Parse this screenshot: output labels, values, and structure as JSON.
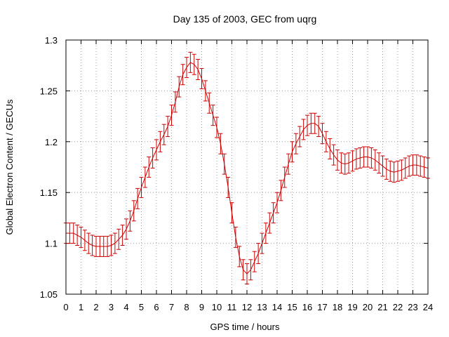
{
  "chart_data": {
    "type": "line",
    "title": "Day 135 of 2003, GEC from uqrg",
    "xlabel": "GPS time / hours",
    "ylabel": "Global Electron Content / GECUs",
    "xlim": [
      0,
      24
    ],
    "ylim": [
      1.05,
      1.3
    ],
    "xticks": [
      0,
      1,
      2,
      3,
      4,
      5,
      6,
      7,
      8,
      9,
      10,
      11,
      12,
      13,
      14,
      15,
      16,
      17,
      18,
      19,
      20,
      21,
      22,
      23,
      24
    ],
    "yticks": [
      1.05,
      1.1,
      1.15,
      1.2,
      1.25,
      1.3
    ],
    "ytick_labels": [
      "1.05",
      "1.1",
      "1.15",
      "1.2",
      "1.25",
      "1.3"
    ],
    "grid": true,
    "colors": {
      "series": "#cc0000"
    },
    "series": [
      {
        "x": [
          0,
          0.25,
          0.5,
          0.75,
          1,
          1.25,
          1.5,
          1.75,
          2,
          2.25,
          2.5,
          2.75,
          3,
          3.25,
          3.5,
          3.75,
          4,
          4.25,
          4.5,
          4.75,
          5,
          5.25,
          5.5,
          5.75,
          6,
          6.25,
          6.5,
          6.75,
          7,
          7.25,
          7.5,
          7.75,
          8,
          8.25,
          8.5,
          8.75,
          9,
          9.25,
          9.5,
          9.75,
          10,
          10.25,
          10.5,
          10.75,
          11,
          11.25,
          11.5,
          11.75,
          12,
          12.25,
          12.5,
          12.75,
          13,
          13.25,
          13.5,
          13.75,
          14,
          14.25,
          14.5,
          14.75,
          15,
          15.25,
          15.5,
          15.75,
          16,
          16.25,
          16.5,
          16.75,
          17,
          17.25,
          17.5,
          17.75,
          18,
          18.25,
          18.5,
          18.75,
          19,
          19.25,
          19.5,
          19.75,
          20,
          20.25,
          20.5,
          20.75,
          21,
          21.25,
          21.5,
          21.75,
          22,
          22.25,
          22.5,
          22.75,
          23,
          23.25,
          23.5,
          23.75,
          24
        ],
        "y": [
          1.11,
          1.11,
          1.11,
          1.108,
          1.106,
          1.103,
          1.1,
          1.098,
          1.097,
          1.097,
          1.097,
          1.097,
          1.098,
          1.1,
          1.104,
          1.108,
          1.114,
          1.122,
          1.132,
          1.144,
          1.155,
          1.165,
          1.175,
          1.184,
          1.192,
          1.2,
          1.207,
          1.215,
          1.226,
          1.239,
          1.254,
          1.266,
          1.273,
          1.278,
          1.276,
          1.271,
          1.262,
          1.25,
          1.238,
          1.226,
          1.214,
          1.198,
          1.178,
          1.155,
          1.13,
          1.106,
          1.087,
          1.074,
          1.07,
          1.074,
          1.082,
          1.09,
          1.1,
          1.11,
          1.12,
          1.13,
          1.14,
          1.152,
          1.165,
          1.178,
          1.19,
          1.198,
          1.205,
          1.212,
          1.216,
          1.218,
          1.218,
          1.215,
          1.208,
          1.2,
          1.193,
          1.187,
          1.182,
          1.179,
          1.178,
          1.179,
          1.181,
          1.183,
          1.184,
          1.185,
          1.185,
          1.184,
          1.182,
          1.179,
          1.176,
          1.173,
          1.171,
          1.17,
          1.171,
          1.172,
          1.174,
          1.176,
          1.177,
          1.177,
          1.176,
          1.175,
          1.174
        ],
        "error": 0.01
      }
    ]
  }
}
